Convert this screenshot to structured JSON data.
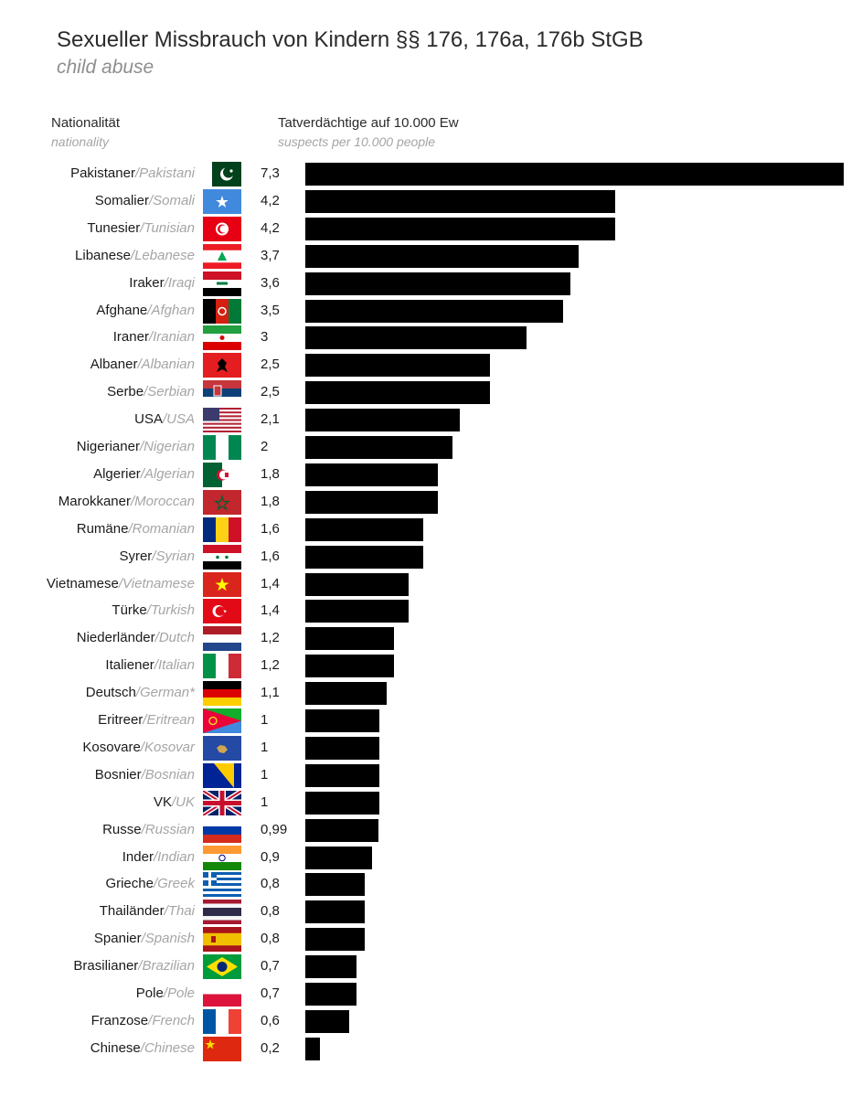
{
  "title": "Sexueller Missbrauch von Kindern §§ 176, 176a, 176b StGB",
  "subtitle": "child abuse",
  "headers": {
    "nationality_de": "Nationalität",
    "nationality_en": "nationality",
    "metric_de": "Tatverdächtige auf 10.000 Ew",
    "metric_en": "suspects per 10.000 people"
  },
  "colors": {
    "bar": "#000000",
    "english_label": "#a5a5a5",
    "text": "#1a1a1a"
  },
  "chart_data": {
    "type": "bar",
    "orientation": "horizontal",
    "title": "Sexueller Missbrauch von Kindern §§ 176, 176a, 176b StGB",
    "subtitle": "child abuse",
    "xlabel": "Tatverdächtige auf 10.000 Ew",
    "ylabel": "Nationalität",
    "xlim": [
      0,
      7.3
    ],
    "grid": false,
    "rows": [
      {
        "de": "Pakistaner",
        "en": "Pakistani",
        "value": 7.3,
        "label": "7,3",
        "flag": "pakistan-flag-icon"
      },
      {
        "de": "Somalier",
        "en": "Somali",
        "value": 4.2,
        "label": "4,2",
        "flag": "somalia-flag-icon"
      },
      {
        "de": "Tunesier",
        "en": "Tunisian",
        "value": 4.2,
        "label": "4,2",
        "flag": "tunisia-flag-icon"
      },
      {
        "de": "Libanese",
        "en": "Lebanese",
        "value": 3.7,
        "label": "3,7",
        "flag": "lebanon-flag-icon"
      },
      {
        "de": "Iraker",
        "en": "Iraqi",
        "value": 3.6,
        "label": "3,6",
        "flag": "iraq-flag-icon"
      },
      {
        "de": "Afghane",
        "en": "Afghan",
        "value": 3.5,
        "label": "3,5",
        "flag": "afghanistan-flag-icon"
      },
      {
        "de": "Iraner",
        "en": "Iranian",
        "value": 3,
        "label": "3",
        "flag": "iran-flag-icon"
      },
      {
        "de": "Albaner",
        "en": "Albanian",
        "value": 2.5,
        "label": "2,5",
        "flag": "albania-flag-icon"
      },
      {
        "de": "Serbe",
        "en": "Serbian",
        "value": 2.5,
        "label": "2,5",
        "flag": "serbia-flag-icon"
      },
      {
        "de": "USA",
        "en": "USA",
        "value": 2.1,
        "label": "2,1",
        "flag": "usa-flag-icon"
      },
      {
        "de": "Nigerianer",
        "en": "Nigerian",
        "value": 2,
        "label": "2",
        "flag": "nigeria-flag-icon"
      },
      {
        "de": "Algerier",
        "en": "Algerian",
        "value": 1.8,
        "label": "1,8",
        "flag": "algeria-flag-icon"
      },
      {
        "de": "Marokkaner",
        "en": "Moroccan",
        "value": 1.8,
        "label": "1,8",
        "flag": "morocco-flag-icon"
      },
      {
        "de": "Rumäne",
        "en": "Romanian",
        "value": 1.6,
        "label": "1,6",
        "flag": "romania-flag-icon"
      },
      {
        "de": "Syrer",
        "en": "Syrian",
        "value": 1.6,
        "label": "1,6",
        "flag": "syria-flag-icon"
      },
      {
        "de": "Vietnamese",
        "en": "Vietnamese",
        "value": 1.4,
        "label": "1,4",
        "flag": "vietnam-flag-icon"
      },
      {
        "de": "Türke",
        "en": "Turkish",
        "value": 1.4,
        "label": "1,4",
        "flag": "turkey-flag-icon"
      },
      {
        "de": "Niederländer",
        "en": "Dutch",
        "value": 1.2,
        "label": "1,2",
        "flag": "netherlands-flag-icon"
      },
      {
        "de": "Italiener",
        "en": "Italian",
        "value": 1.2,
        "label": "1,2",
        "flag": "italy-flag-icon"
      },
      {
        "de": "Deutsch",
        "en": "German*",
        "value": 1.1,
        "label": "1,1",
        "flag": "germany-flag-icon"
      },
      {
        "de": "Eritreer",
        "en": "Eritrean",
        "value": 1,
        "label": "1",
        "flag": "eritrea-flag-icon"
      },
      {
        "de": "Kosovare",
        "en": "Kosovar",
        "value": 1,
        "label": "1",
        "flag": "kosovo-flag-icon"
      },
      {
        "de": "Bosnier",
        "en": "Bosnian",
        "value": 1,
        "label": "1",
        "flag": "bosnia-flag-icon"
      },
      {
        "de": "VK",
        "en": "UK",
        "value": 1,
        "label": "1",
        "flag": "uk-flag-icon"
      },
      {
        "de": "Russe",
        "en": "Russian",
        "value": 0.99,
        "label": "0,99",
        "flag": "russia-flag-icon"
      },
      {
        "de": "Inder",
        "en": "Indian",
        "value": 0.9,
        "label": "0,9",
        "flag": "india-flag-icon"
      },
      {
        "de": "Grieche",
        "en": "Greek",
        "value": 0.8,
        "label": "0,8",
        "flag": "greece-flag-icon"
      },
      {
        "de": "Thailänder",
        "en": "Thai",
        "value": 0.8,
        "label": "0,8",
        "flag": "thailand-flag-icon"
      },
      {
        "de": "Spanier",
        "en": "Spanish",
        "value": 0.8,
        "label": "0,8",
        "flag": "spain-flag-icon"
      },
      {
        "de": "Brasilianer",
        "en": "Brazilian",
        "value": 0.7,
        "label": "0,7",
        "flag": "brazil-flag-icon"
      },
      {
        "de": "Pole",
        "en": "Pole",
        "value": 0.7,
        "label": "0,7",
        "flag": "poland-flag-icon"
      },
      {
        "de": "Franzose",
        "en": "French",
        "value": 0.6,
        "label": "0,6",
        "flag": "france-flag-icon"
      },
      {
        "de": "Chinese",
        "en": "Chinese",
        "value": 0.2,
        "label": "0,2",
        "flag": "china-flag-icon"
      }
    ]
  }
}
